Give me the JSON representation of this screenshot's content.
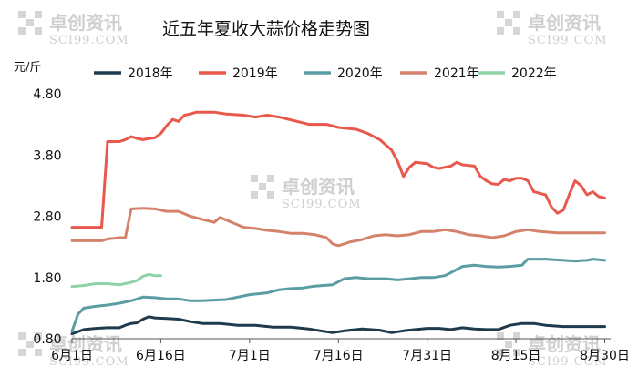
{
  "chart_data": {
    "type": "line",
    "title": "近五年夏收大蒜价格走势图",
    "ylabel": "元/斤",
    "ylim": [
      0.8,
      4.8
    ],
    "yticks": [
      "4.80",
      "3.80",
      "2.80",
      "1.80",
      "0.80"
    ],
    "xlim": [
      0,
      91
    ],
    "xticks": [
      {
        "label": "6月1日",
        "day": 0
      },
      {
        "label": "6月16日",
        "day": 15
      },
      {
        "label": "7月1日",
        "day": 30
      },
      {
        "label": "7月16日",
        "day": 45
      },
      {
        "label": "7月31日",
        "day": 60
      },
      {
        "label": "8月15日",
        "day": 75
      },
      {
        "label": "8月30日",
        "day": 90
      }
    ],
    "grid": false,
    "legend_position": "top",
    "series": [
      {
        "name": "2018年",
        "color": "#1f3a4d",
        "points": [
          [
            0,
            0.88
          ],
          [
            2,
            0.95
          ],
          [
            4,
            0.97
          ],
          [
            6,
            0.98
          ],
          [
            8,
            0.98
          ],
          [
            9,
            1.02
          ],
          [
            10,
            1.05
          ],
          [
            11,
            1.06
          ],
          [
            12,
            1.12
          ],
          [
            13,
            1.16
          ],
          [
            14,
            1.14
          ],
          [
            16,
            1.13
          ],
          [
            18,
            1.12
          ],
          [
            20,
            1.08
          ],
          [
            22,
            1.05
          ],
          [
            25,
            1.05
          ],
          [
            28,
            1.02
          ],
          [
            31,
            1.02
          ],
          [
            34,
            0.99
          ],
          [
            37,
            0.99
          ],
          [
            40,
            0.96
          ],
          [
            42,
            0.93
          ],
          [
            44,
            0.9
          ],
          [
            46,
            0.93
          ],
          [
            49,
            0.96
          ],
          [
            52,
            0.94
          ],
          [
            54,
            0.9
          ],
          [
            56,
            0.93
          ],
          [
            58,
            0.95
          ],
          [
            60,
            0.97
          ],
          [
            62,
            0.97
          ],
          [
            64,
            0.95
          ],
          [
            66,
            0.98
          ],
          [
            68,
            0.96
          ],
          [
            70,
            0.95
          ],
          [
            72,
            0.95
          ],
          [
            74,
            1.02
          ],
          [
            76,
            1.05
          ],
          [
            78,
            1.05
          ],
          [
            80,
            1.02
          ],
          [
            83,
            1.0
          ],
          [
            86,
            1.0
          ],
          [
            90,
            1.0
          ]
        ]
      },
      {
        "name": "2019年",
        "color": "#e8584c",
        "points": [
          [
            0,
            2.62
          ],
          [
            2,
            2.62
          ],
          [
            4,
            2.62
          ],
          [
            5,
            2.62
          ],
          [
            6,
            4.02
          ],
          [
            8,
            4.02
          ],
          [
            9,
            4.05
          ],
          [
            10,
            4.1
          ],
          [
            11,
            4.07
          ],
          [
            12,
            4.05
          ],
          [
            13,
            4.07
          ],
          [
            14,
            4.08
          ],
          [
            15,
            4.15
          ],
          [
            16,
            4.28
          ],
          [
            17,
            4.38
          ],
          [
            18,
            4.35
          ],
          [
            19,
            4.45
          ],
          [
            20,
            4.47
          ],
          [
            21,
            4.5
          ],
          [
            24,
            4.5
          ],
          [
            26,
            4.47
          ],
          [
            29,
            4.45
          ],
          [
            31,
            4.42
          ],
          [
            33,
            4.45
          ],
          [
            35,
            4.42
          ],
          [
            38,
            4.35
          ],
          [
            40,
            4.3
          ],
          [
            43,
            4.3
          ],
          [
            45,
            4.25
          ],
          [
            48,
            4.22
          ],
          [
            50,
            4.15
          ],
          [
            52,
            4.05
          ],
          [
            54,
            3.88
          ],
          [
            55,
            3.7
          ],
          [
            56,
            3.45
          ],
          [
            57,
            3.6
          ],
          [
            58,
            3.68
          ],
          [
            60,
            3.66
          ],
          [
            61,
            3.6
          ],
          [
            62,
            3.58
          ],
          [
            63,
            3.6
          ],
          [
            64,
            3.62
          ],
          [
            65,
            3.68
          ],
          [
            66,
            3.64
          ],
          [
            68,
            3.62
          ],
          [
            69,
            3.45
          ],
          [
            70,
            3.38
          ],
          [
            71,
            3.33
          ],
          [
            72,
            3.32
          ],
          [
            73,
            3.4
          ],
          [
            74,
            3.38
          ],
          [
            75,
            3.42
          ],
          [
            76,
            3.42
          ],
          [
            77,
            3.38
          ],
          [
            78,
            3.2
          ],
          [
            80,
            3.15
          ],
          [
            81,
            2.95
          ],
          [
            82,
            2.85
          ],
          [
            83,
            2.9
          ],
          [
            84,
            3.15
          ],
          [
            85,
            3.38
          ],
          [
            86,
            3.3
          ],
          [
            87,
            3.15
          ],
          [
            88,
            3.2
          ],
          [
            89,
            3.12
          ],
          [
            90,
            3.1
          ]
        ]
      },
      {
        "name": "2020年",
        "color": "#5a9ea3",
        "points": [
          [
            0,
            0.92
          ],
          [
            1,
            1.2
          ],
          [
            2,
            1.3
          ],
          [
            4,
            1.33
          ],
          [
            6,
            1.35
          ],
          [
            8,
            1.38
          ],
          [
            10,
            1.42
          ],
          [
            12,
            1.48
          ],
          [
            14,
            1.47
          ],
          [
            16,
            1.45
          ],
          [
            18,
            1.45
          ],
          [
            20,
            1.42
          ],
          [
            22,
            1.42
          ],
          [
            24,
            1.43
          ],
          [
            26,
            1.44
          ],
          [
            28,
            1.48
          ],
          [
            30,
            1.52
          ],
          [
            33,
            1.55
          ],
          [
            35,
            1.6
          ],
          [
            37,
            1.62
          ],
          [
            39,
            1.63
          ],
          [
            41,
            1.66
          ],
          [
            44,
            1.68
          ],
          [
            46,
            1.78
          ],
          [
            48,
            1.8
          ],
          [
            50,
            1.78
          ],
          [
            53,
            1.78
          ],
          [
            55,
            1.76
          ],
          [
            57,
            1.78
          ],
          [
            59,
            1.8
          ],
          [
            61,
            1.8
          ],
          [
            63,
            1.83
          ],
          [
            64,
            1.88
          ],
          [
            66,
            1.98
          ],
          [
            68,
            2.0
          ],
          [
            70,
            1.98
          ],
          [
            72,
            1.97
          ],
          [
            74,
            1.98
          ],
          [
            76,
            2.0
          ],
          [
            77,
            2.1
          ],
          [
            80,
            2.1
          ],
          [
            83,
            2.08
          ],
          [
            85,
            2.07
          ],
          [
            87,
            2.08
          ],
          [
            88,
            2.1
          ],
          [
            90,
            2.08
          ]
        ]
      },
      {
        "name": "2021年",
        "color": "#d4826b",
        "points": [
          [
            0,
            2.4
          ],
          [
            3,
            2.4
          ],
          [
            5,
            2.4
          ],
          [
            6,
            2.43
          ],
          [
            8,
            2.45
          ],
          [
            9,
            2.45
          ],
          [
            10,
            2.92
          ],
          [
            12,
            2.93
          ],
          [
            14,
            2.92
          ],
          [
            16,
            2.88
          ],
          [
            18,
            2.88
          ],
          [
            20,
            2.8
          ],
          [
            22,
            2.75
          ],
          [
            24,
            2.7
          ],
          [
            25,
            2.78
          ],
          [
            27,
            2.7
          ],
          [
            29,
            2.62
          ],
          [
            31,
            2.6
          ],
          [
            33,
            2.57
          ],
          [
            35,
            2.55
          ],
          [
            37,
            2.52
          ],
          [
            39,
            2.52
          ],
          [
            41,
            2.5
          ],
          [
            43,
            2.45
          ],
          [
            44,
            2.35
          ],
          [
            45,
            2.32
          ],
          [
            47,
            2.38
          ],
          [
            49,
            2.42
          ],
          [
            51,
            2.48
          ],
          [
            53,
            2.5
          ],
          [
            55,
            2.48
          ],
          [
            57,
            2.5
          ],
          [
            59,
            2.55
          ],
          [
            61,
            2.55
          ],
          [
            63,
            2.58
          ],
          [
            65,
            2.55
          ],
          [
            67,
            2.5
          ],
          [
            69,
            2.48
          ],
          [
            71,
            2.45
          ],
          [
            73,
            2.48
          ],
          [
            75,
            2.55
          ],
          [
            77,
            2.58
          ],
          [
            79,
            2.55
          ],
          [
            82,
            2.53
          ],
          [
            86,
            2.53
          ],
          [
            90,
            2.53
          ]
        ]
      },
      {
        "name": "2022年",
        "color": "#8fd1a8",
        "points": [
          [
            0,
            1.65
          ],
          [
            2,
            1.67
          ],
          [
            4,
            1.7
          ],
          [
            6,
            1.7
          ],
          [
            8,
            1.68
          ],
          [
            10,
            1.72
          ],
          [
            11,
            1.75
          ],
          [
            12,
            1.82
          ],
          [
            13,
            1.85
          ],
          [
            14,
            1.83
          ],
          [
            15,
            1.83
          ]
        ]
      }
    ]
  }
}
